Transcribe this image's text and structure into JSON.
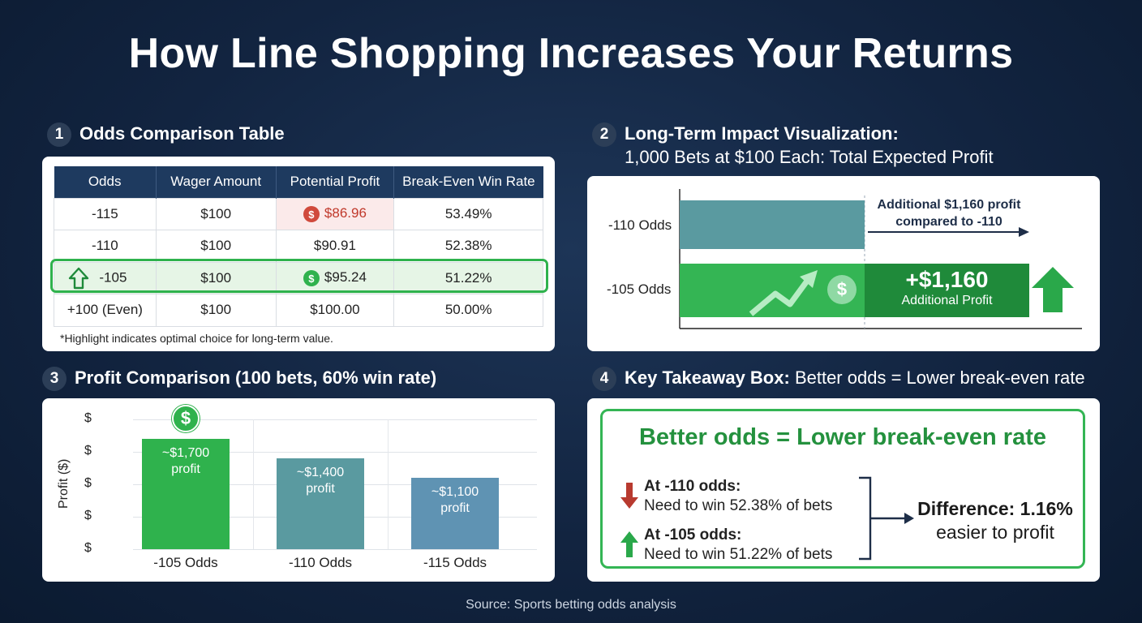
{
  "title": "How Line Shopping Increases Your Returns",
  "section1": {
    "number": "1",
    "title": "Odds Comparison Table",
    "headers": [
      "Odds",
      "Wager Amount",
      "Potential Profit",
      "Break-Even Win Rate"
    ],
    "rows": [
      {
        "odds": "-115",
        "wager": "$100",
        "profit": "$86.96",
        "rate": "53.49%"
      },
      {
        "odds": "-110",
        "wager": "$100",
        "profit": "$90.91",
        "rate": "52.38%"
      },
      {
        "odds": "-105",
        "wager": "$100",
        "profit": "$95.24",
        "rate": "51.22%"
      },
      {
        "odds": "+100 (Even)",
        "wager": "$100",
        "profit": "$100.00",
        "rate": "50.00%"
      }
    ],
    "note": "*Highlight indicates optimal choice for long-term value.",
    "dollar_icon": "$"
  },
  "section2": {
    "number": "2",
    "title": "Long-Term Impact Visualization:",
    "subtitle": "1,000 Bets at $100 Each: Total Expected Profit",
    "label_110": "-110 Odds",
    "label_105": "-105 Odds",
    "annotation_line1": "Additional $1,160 profit",
    "annotation_line2": "compared to -110",
    "gain_value": "+$1,160",
    "gain_label": "Additional Profit",
    "dollar_icon": "$",
    "colors": {
      "bar_110": "#5a9aa0",
      "bar_105": "#34b554",
      "gain": "#1f8a3a",
      "arrow_up": "#2aa84a"
    }
  },
  "section3": {
    "number": "3",
    "title": "Profit Comparison (100 bets, 60% win rate)",
    "dollar_icon": "$",
    "chart_data": {
      "type": "bar",
      "categories": [
        "-105 Odds",
        "-110 Odds",
        "-115 Odds"
      ],
      "values": [
        1700,
        1400,
        1100
      ],
      "bar_labels": [
        [
          "~$1,700",
          "profit"
        ],
        [
          "~$1,400",
          "profit"
        ],
        [
          "~$1,100",
          "profit"
        ]
      ],
      "colors": [
        "#2fb24d",
        "#5a9aa0",
        "#5f93b3"
      ],
      "ylabel": "Profit ($)",
      "ytick_labels": [
        "$",
        "$",
        "$",
        "$",
        "$"
      ],
      "ylim": [
        0,
        2000
      ],
      "grid": true
    }
  },
  "section4": {
    "number": "4",
    "title_bold": "Key Takeaway Box:",
    "title_light": "Better odds = Lower break-even rate",
    "headline": "Better odds = Lower break-even rate",
    "item1_title": "At -110 odds:",
    "item1_text": "Need to win 52.38% of bets",
    "item2_title": "At -105 odds:",
    "item2_text": "Need to win 51.22% of bets",
    "diff_title": "Difference: 1.16%",
    "diff_text": "easier to profit"
  },
  "source": "Source: Sports betting odds analysis"
}
